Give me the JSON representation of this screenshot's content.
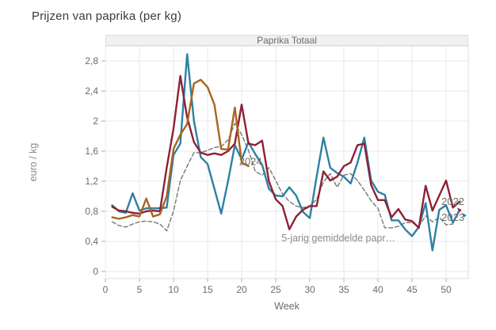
{
  "page": {
    "title": "Prijzen van paprika (per kg)"
  },
  "panel": {
    "title": "Paprika Totaal"
  },
  "chart_data": {
    "type": "line",
    "title": "Paprika Totaal",
    "xlabel": "Week",
    "ylabel": "euro / kg",
    "xlim": [
      0,
      53.3
    ],
    "ylim": [
      0,
      3.0
    ],
    "grid": true,
    "legend_position": "inline-annotations",
    "x_ticks": [
      0,
      5,
      10,
      15,
      20,
      25,
      30,
      35,
      40,
      45,
      50
    ],
    "x_tick_labels": [
      "0",
      "5",
      "10",
      "15",
      "20",
      "25",
      "30",
      "35",
      "40",
      "45",
      "50"
    ],
    "y_ticks": [
      0,
      0.4,
      0.8,
      1.2,
      1.6,
      2.0,
      2.4,
      2.8
    ],
    "y_tick_labels": [
      "0",
      "0,4",
      "0,8",
      "1,2",
      "1,6",
      "2",
      "2,4",
      "2,8"
    ],
    "series": [
      {
        "name": "5-jarig gemiddelde paprika",
        "style": "dashed",
        "color": "#767676",
        "x_start": 1,
        "values": [
          0.66,
          0.61,
          0.59,
          0.63,
          0.66,
          0.67,
          0.66,
          0.63,
          0.54,
          0.8,
          1.21,
          1.4,
          1.58,
          1.58,
          1.61,
          1.65,
          1.66,
          1.75,
          1.97,
          1.82,
          1.61,
          1.33,
          1.28,
          1.38,
          1.21,
          1.03,
          0.93,
          0.87,
          0.85,
          0.87,
          0.96,
          1.19,
          1.3,
          1.12,
          1.28,
          1.3,
          1.21,
          1.08,
          0.94,
          0.84,
          0.58,
          0.58,
          0.6,
          0.65,
          0.65,
          0.6,
          0.74,
          0.66,
          0.72,
          0.62,
          0.63
        ]
      },
      {
        "name": "2023",
        "style": "solid",
        "color": "#2e80a3",
        "x_start": 1,
        "values": [
          0.88,
          0.8,
          0.78,
          1.04,
          0.81,
          0.84,
          0.84,
          0.84,
          0.85,
          1.55,
          1.7,
          2.89,
          2.0,
          1.52,
          1.43,
          1.1,
          0.77,
          1.2,
          1.68,
          1.49,
          1.72,
          1.56,
          1.42,
          1.1,
          1.01,
          1.0,
          1.12,
          1.01,
          0.79,
          0.71,
          1.26,
          1.78,
          1.38,
          1.31,
          1.26,
          1.17,
          1.45,
          1.78,
          1.21,
          1.06,
          1.02,
          0.68,
          0.68,
          0.56,
          0.47,
          0.59,
          0.91,
          0.28,
          0.82,
          0.88,
          0.65,
          0.82
        ]
      },
      {
        "name": "2022",
        "style": "solid",
        "color": "#8c2137",
        "x_start": 1,
        "values": [
          0.86,
          0.81,
          0.8,
          0.78,
          0.77,
          0.8,
          0.81,
          0.8,
          1.38,
          1.9,
          2.6,
          2.05,
          1.72,
          1.58,
          1.55,
          1.57,
          1.55,
          1.6,
          1.7,
          2.22,
          1.7,
          1.68,
          1.74,
          1.2,
          0.96,
          0.87,
          0.56,
          0.73,
          0.82,
          0.87,
          0.87,
          1.33,
          1.21,
          1.26,
          1.4,
          1.45,
          1.68,
          1.7,
          1.15,
          0.95,
          0.95,
          0.72,
          0.83,
          0.69,
          0.67,
          0.58,
          1.14,
          0.81,
          1.01,
          1.21,
          0.85,
          0.93
        ]
      },
      {
        "name": "2024",
        "style": "solid",
        "color": "#a8641f",
        "x_start": 1,
        "values": [
          0.72,
          0.7,
          0.72,
          0.75,
          0.73,
          0.97,
          0.73,
          0.76,
          1.0,
          1.63,
          1.82,
          1.96,
          2.5,
          2.55,
          2.45,
          2.22,
          1.63,
          1.62,
          2.18,
          1.45,
          1.4
        ]
      }
    ],
    "annotations": [
      {
        "id": "label-2024",
        "text": "2024",
        "x": 21.3,
        "y": 1.46,
        "color": "#707070",
        "size": 13
      },
      {
        "id": "label-2022",
        "text": "2022",
        "x": 51.0,
        "y": 0.925,
        "color": "#6e6e6e",
        "size": 13
      },
      {
        "id": "label-2023",
        "text": "2023",
        "x": 51.0,
        "y": 0.715,
        "color": "#6e6e6e",
        "size": 13
      },
      {
        "id": "label-avg",
        "text": "5-jarig gemiddelde papr…",
        "x": 34.2,
        "y": 0.44,
        "color": "#8c8c8c",
        "size": 12.5
      }
    ],
    "arrows": [
      {
        "x": 51.6,
        "y": 0.85,
        "color": "#8c2137"
      },
      {
        "x": 52.3,
        "y": 0.78,
        "color": "#2e80a3"
      }
    ]
  }
}
